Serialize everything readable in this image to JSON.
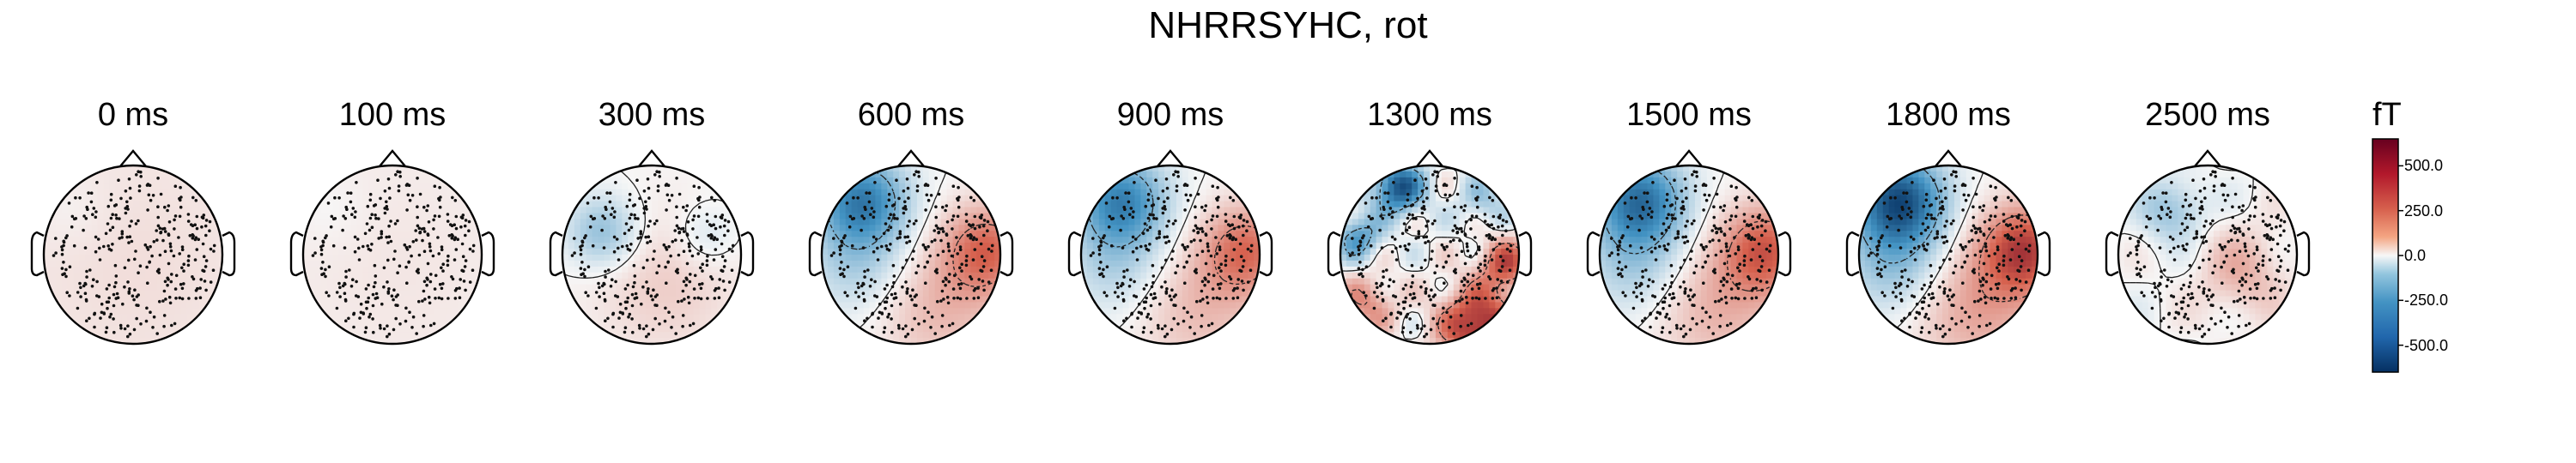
{
  "title": "NHRRSYHC, rot",
  "chart_data": {
    "type": "topomap",
    "title": "NHRRSYHC, rot",
    "panels": [
      {
        "label": "0 ms",
        "time_ms": 0,
        "amplitude_fT": 60,
        "pattern": "weak-positive"
      },
      {
        "label": "100 ms",
        "time_ms": 100,
        "amplitude_fT": 40,
        "pattern": "weak-positive"
      },
      {
        "label": "300 ms",
        "time_ms": 300,
        "amplitude_fT": 220,
        "pattern": "left-negative-center-positive"
      },
      {
        "label": "600 ms",
        "time_ms": 600,
        "amplitude_fT": 420,
        "pattern": "left-frontal-negative-right-positive"
      },
      {
        "label": "900 ms",
        "time_ms": 900,
        "amplitude_fT": 400,
        "pattern": "left-frontal-negative-right-positive"
      },
      {
        "label": "1300 ms",
        "time_ms": 1300,
        "amplitude_fT": 560,
        "pattern": "mixed-noisy"
      },
      {
        "label": "1500 ms",
        "time_ms": 1500,
        "amplitude_fT": 460,
        "pattern": "left-frontal-negative-right-positive"
      },
      {
        "label": "1800 ms",
        "time_ms": 1800,
        "amplitude_fT": 560,
        "pattern": "left-frontal-negative-right-positive"
      },
      {
        "label": "2500 ms",
        "time_ms": 2500,
        "amplitude_fT": 200,
        "pattern": "mixed-weak"
      }
    ],
    "colorbar": {
      "unit": "fT",
      "range": [
        -650,
        650
      ],
      "ticks": [
        500.0,
        250.0,
        0.0,
        -250.0,
        -500.0
      ],
      "tick_labels": [
        "500.0",
        "250.0",
        "0.0",
        "-250.0",
        "-500.0"
      ],
      "colormap": "RdBu_r",
      "colors": {
        "max": "#67001f",
        "pos": "#d6604d",
        "zero": "#f7f7f7",
        "neg": "#4393c3",
        "min": "#053061"
      }
    },
    "sensor_marker": "dot",
    "contours": true
  }
}
